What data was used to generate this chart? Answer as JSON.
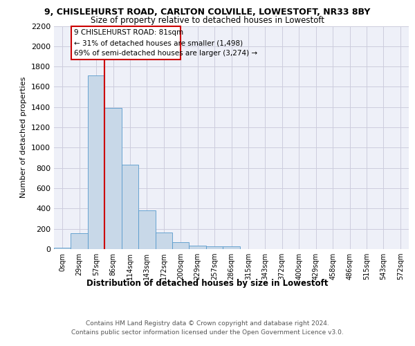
{
  "title_line1": "9, CHISLEHURST ROAD, CARLTON COLVILLE, LOWESTOFT, NR33 8BY",
  "title_line2": "Size of property relative to detached houses in Lowestoft",
  "xlabel": "Distribution of detached houses by size in Lowestoft",
  "ylabel": "Number of detached properties",
  "bin_labels": [
    "0sqm",
    "29sqm",
    "57sqm",
    "86sqm",
    "114sqm",
    "143sqm",
    "172sqm",
    "200sqm",
    "229sqm",
    "257sqm",
    "286sqm",
    "315sqm",
    "343sqm",
    "372sqm",
    "400sqm",
    "429sqm",
    "458sqm",
    "486sqm",
    "515sqm",
    "543sqm",
    "572sqm"
  ],
  "bar_heights": [
    15,
    155,
    1710,
    1390,
    835,
    385,
    165,
    65,
    35,
    25,
    25,
    0,
    0,
    0,
    0,
    0,
    0,
    0,
    0,
    0,
    0
  ],
  "bar_color": "#c8d8e8",
  "bar_edge_color": "#5599cc",
  "grid_color": "#ccccdd",
  "background_color": "#eef0f8",
  "vline_color": "#cc0000",
  "annotation_text": "9 CHISLEHURST ROAD: 81sqm\n← 31% of detached houses are smaller (1,498)\n69% of semi-detached houses are larger (3,274) →",
  "annotation_box_color": "#cc0000",
  "ylim": [
    0,
    2200
  ],
  "yticks": [
    0,
    200,
    400,
    600,
    800,
    1000,
    1200,
    1400,
    1600,
    1800,
    2000,
    2200
  ],
  "footer_line1": "Contains HM Land Registry data © Crown copyright and database right 2024.",
  "footer_line2": "Contains public sector information licensed under the Open Government Licence v3.0."
}
